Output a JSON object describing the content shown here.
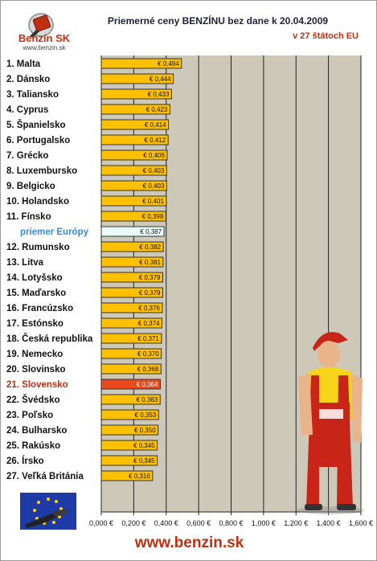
{
  "header": {
    "logo_text": "Benzín SK",
    "logo_url": "www.benzin.sk",
    "title": "Priemerné ceny BENZÍNU bez dane k 20.04.2009",
    "subtitle": "v 27 štátoch EU"
  },
  "footer": {
    "url": "www.benzin.sk"
  },
  "colors": {
    "bar": "#ffc000",
    "highlight_bar": "#e84a1c",
    "average_bar": "#e8fafa",
    "plot_bg": "#cdc8b8",
    "highlight_text": "#c03010",
    "average_text": "#3a8ad8"
  },
  "icons": [
    "benzin-sk-logo-icon",
    "gas-station-worker-icon",
    "eu-flag-nozzle-icon"
  ],
  "chart_data": {
    "type": "bar",
    "orientation": "horizontal",
    "grid": true,
    "xlim": [
      0,
      1.6
    ],
    "ticks": [
      "0,000 €",
      "0,200 €",
      "0,400 €",
      "0,600 €",
      "0,800 €",
      "1,000 €",
      "1,200 €",
      "1,400 €",
      "1,600 €"
    ],
    "categories": [
      "1. Malta",
      "2. Dánsko",
      "3. Taliansko",
      "4. Cyprus",
      "5. Španielsko",
      "6. Portugalsko",
      "7. Grécko",
      "8. Luxembursko",
      "9. Belgicko",
      "10. Holandsko",
      "11. Fínsko",
      "priemer Európy",
      "12. Rumunsko",
      "13. Litva",
      "14. Lotyšsko",
      "15. Maďarsko",
      "16. Francúzsko",
      "17. Estónsko",
      "18. Česká republika",
      "19. Nemecko",
      "20. Slovinsko",
      "21. Slovensko",
      "22. Švédsko",
      "23. Poľsko",
      "24. Bulharsko",
      "25. Rakúsko",
      "26. Írsko",
      "27. Veľká Británia"
    ],
    "values": [
      0.494,
      0.444,
      0.433,
      0.423,
      0.414,
      0.412,
      0.406,
      0.403,
      0.403,
      0.401,
      0.398,
      0.387,
      0.382,
      0.381,
      0.379,
      0.379,
      0.376,
      0.374,
      0.371,
      0.37,
      0.368,
      0.364,
      0.363,
      0.353,
      0.35,
      0.345,
      0.345,
      0.316
    ],
    "labels": [
      "€ 0,494",
      "€ 0,444",
      "€ 0,433",
      "€ 0,423",
      "€ 0,414",
      "€ 0,412",
      "€ 0,406",
      "€ 0,403",
      "€ 0,403",
      "€ 0,401",
      "€ 0,398",
      "€ 0,387",
      "€ 0,382",
      "€ 0,381",
      "€ 0,379",
      "€ 0,379",
      "€ 0,376",
      "€ 0,374",
      "€ 0,371",
      "€ 0,370",
      "€ 0,368",
      "€ 0,364",
      "€ 0,363",
      "€ 0,353",
      "€ 0,350",
      "€ 0,345",
      "€ 0,345",
      "€ 0,316"
    ],
    "highlight": "21. Slovensko",
    "average": "priemer Európy"
  }
}
